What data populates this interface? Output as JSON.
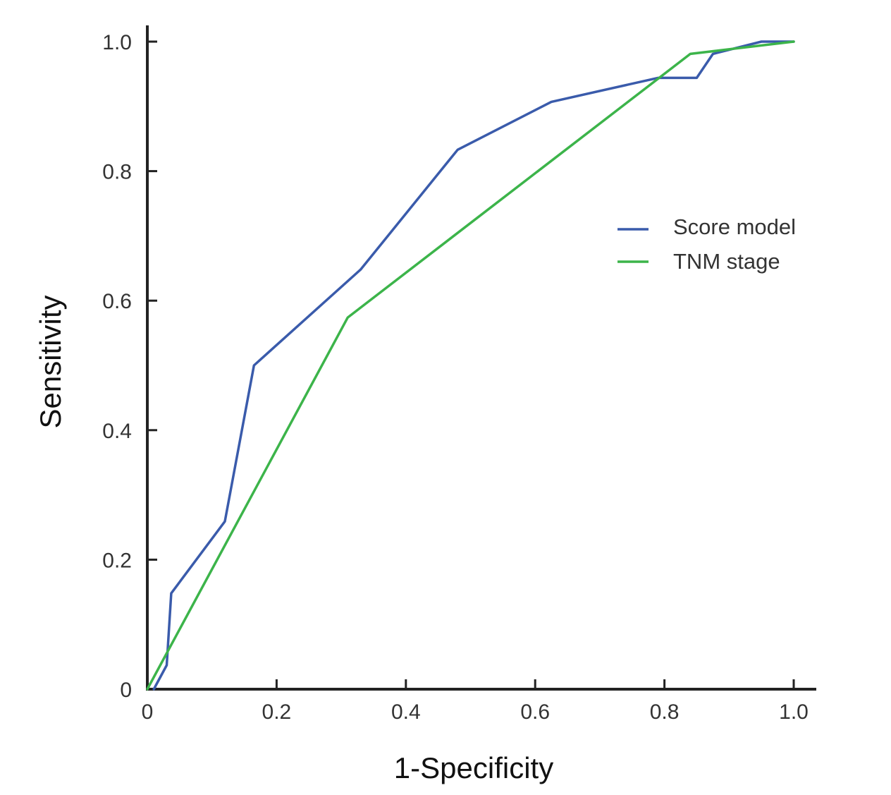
{
  "chart_data": {
    "type": "line",
    "title": "",
    "xlabel": "1-Specificity",
    "ylabel": "Sensitivity",
    "xlim": [
      0,
      1.0
    ],
    "ylim": [
      0,
      1.0
    ],
    "x_ticks": [
      0,
      0.2,
      0.4,
      0.6,
      0.8,
      1.0
    ],
    "x_tick_labels": [
      "0",
      "0.2",
      "0.4",
      "0.6",
      "0.8",
      "1.0"
    ],
    "y_ticks": [
      0,
      0.2,
      0.4,
      0.6,
      0.8,
      1.0
    ],
    "y_tick_labels": [
      "0",
      "0.2",
      "0.4",
      "0.6",
      "0.8",
      "1.0"
    ],
    "grid": false,
    "legend_position": "right",
    "series": [
      {
        "name": "Score model",
        "color": "#3a5bab",
        "points": [
          [
            0.01,
            0.0
          ],
          [
            0.03,
            0.037
          ],
          [
            0.037,
            0.148
          ],
          [
            0.12,
            0.259
          ],
          [
            0.165,
            0.5
          ],
          [
            0.33,
            0.648
          ],
          [
            0.48,
            0.833
          ],
          [
            0.625,
            0.907
          ],
          [
            0.79,
            0.944
          ],
          [
            0.85,
            0.944
          ],
          [
            0.875,
            0.981
          ],
          [
            0.95,
            1.0
          ],
          [
            1.0,
            1.0
          ]
        ]
      },
      {
        "name": "TNM stage",
        "color": "#3cb44a",
        "points": [
          [
            0.0,
            0.0
          ],
          [
            0.31,
            0.574
          ],
          [
            0.84,
            0.981
          ],
          [
            1.0,
            1.0
          ]
        ]
      }
    ]
  }
}
